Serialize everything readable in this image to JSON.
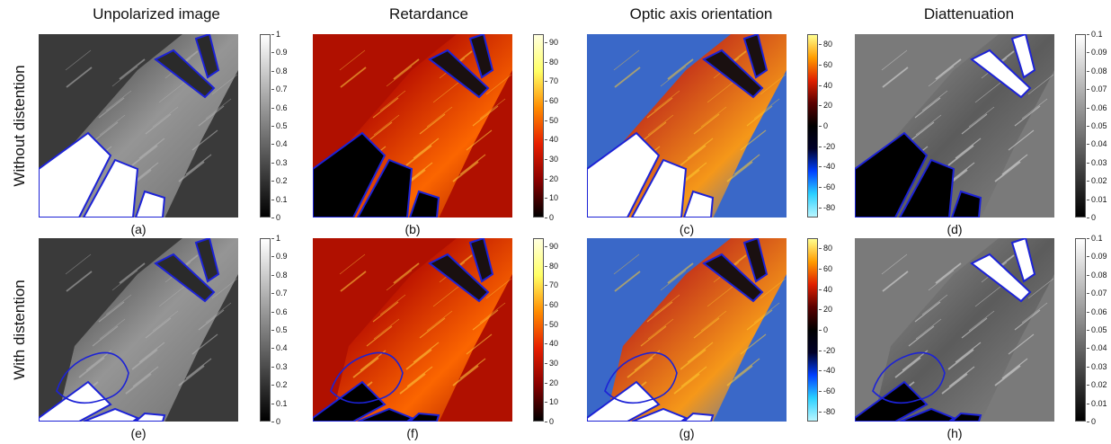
{
  "columns": [
    {
      "title": "Unpolarized image",
      "colormap": "gray",
      "ticks": [
        "1",
        "0.9",
        "0.8",
        "0.7",
        "0.6",
        "0.5",
        "0.4",
        "0.3",
        "0.2",
        "0.1",
        "0"
      ]
    },
    {
      "title": "Retardance",
      "colormap": "hot",
      "ticks": [
        "90",
        "80",
        "70",
        "60",
        "50",
        "40",
        "30",
        "20",
        "10",
        "0"
      ]
    },
    {
      "title": "Optic axis orientation",
      "colormap": "bipolar",
      "ticks": [
        "80",
        "60",
        "40",
        "20",
        "0",
        "-20",
        "-40",
        "-60",
        "-80"
      ]
    },
    {
      "title": "Diattenuation",
      "colormap": "gray",
      "ticks": [
        "0.1",
        "0.09",
        "0.08",
        "0.07",
        "0.06",
        "0.05",
        "0.04",
        "0.03",
        "0.02",
        "0.01",
        "0"
      ]
    }
  ],
  "rows": [
    {
      "title": "Without distention",
      "captions": [
        "(a)",
        "(b)",
        "(c)",
        "(d)"
      ]
    },
    {
      "title": "With distention",
      "captions": [
        "(e)",
        "(f)",
        "(g)",
        "(h)"
      ]
    }
  ],
  "colors": {
    "outline": "#1c22d6",
    "gray": [
      "#000000",
      "#ffffff"
    ],
    "hot": [
      "#000000",
      "#8a0000",
      "#e61e00",
      "#ff8c00",
      "#ffff64",
      "#ffffe0"
    ],
    "bipolar": [
      "#b8f6ff",
      "#2ad0ff",
      "#0040ff",
      "#000028",
      "#000000",
      "#5a0000",
      "#e02000",
      "#ff9c00",
      "#ffff90"
    ]
  }
}
